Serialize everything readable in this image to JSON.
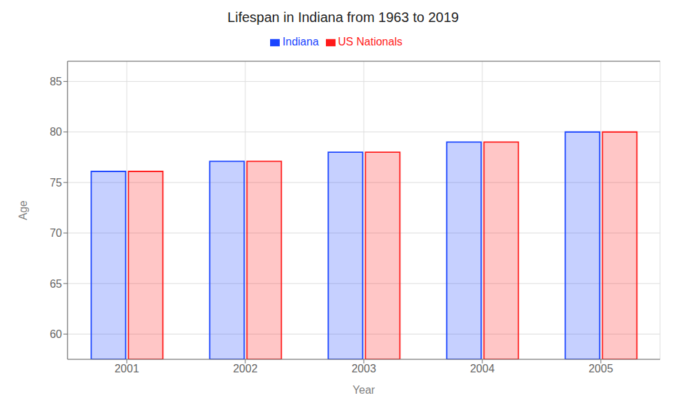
{
  "chart_data": {
    "type": "bar",
    "title": "Lifespan in Indiana from 1963 to 2019",
    "xlabel": "Year",
    "ylabel": "Age",
    "categories": [
      "2001",
      "2002",
      "2003",
      "2004",
      "2005"
    ],
    "series": [
      {
        "name": "Indiana",
        "color": "#1a44ff",
        "values": [
          76.1,
          77.1,
          78.0,
          79.0,
          80.0
        ]
      },
      {
        "name": "US Nationals",
        "color": "#ff1a1a",
        "values": [
          76.1,
          77.1,
          78.0,
          79.0,
          80.0
        ]
      }
    ],
    "ylim": [
      57.5,
      87
    ],
    "yticks": [
      60,
      65,
      70,
      75,
      80,
      85
    ],
    "grid": true,
    "legend": "top"
  }
}
